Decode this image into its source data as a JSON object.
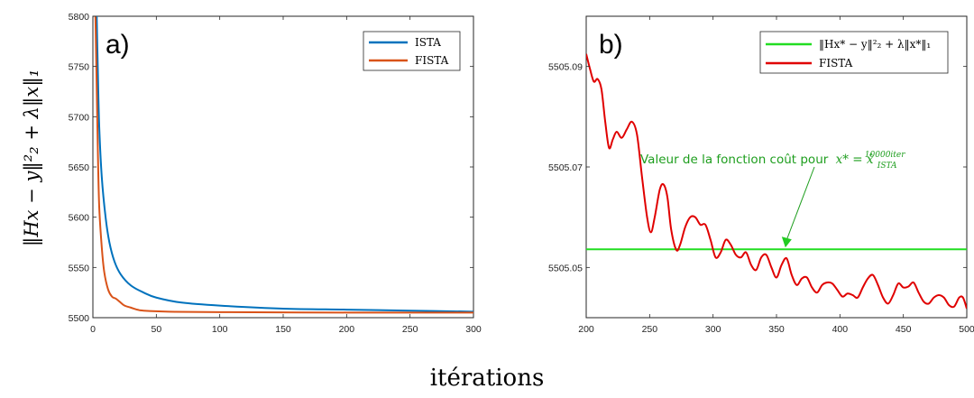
{
  "figure": {
    "xlabel": "itérations",
    "ylabel": "‖Hx − y‖²₂ + λ‖x‖₁"
  },
  "chart_data": [
    {
      "type": "line",
      "panel_label": "a)",
      "xlim": [
        0,
        300
      ],
      "ylim": [
        5500,
        5800
      ],
      "xticks": [
        0,
        50,
        100,
        150,
        200,
        250,
        300
      ],
      "yticks": [
        5500,
        5550,
        5600,
        5650,
        5700,
        5750,
        5800
      ],
      "legend_position": "top-right",
      "series": [
        {
          "name": "ISTA",
          "color": "#0072BD",
          "points": [
            [
              3,
              5800
            ],
            [
              4,
              5740
            ],
            [
              5,
              5690
            ],
            [
              7,
              5640
            ],
            [
              10,
              5600
            ],
            [
              13,
              5575
            ],
            [
              17,
              5556
            ],
            [
              22,
              5543
            ],
            [
              30,
              5532
            ],
            [
              40,
              5525
            ],
            [
              50,
              5520
            ],
            [
              70,
              5515
            ],
            [
              100,
              5512
            ],
            [
              150,
              5509
            ],
            [
              200,
              5508
            ],
            [
              250,
              5507
            ],
            [
              300,
              5506
            ]
          ]
        },
        {
          "name": "FISTA",
          "color": "#D95319",
          "points": [
            [
              2,
              5800
            ],
            [
              3,
              5730
            ],
            [
              4,
              5660
            ],
            [
              5,
              5610
            ],
            [
              7,
              5570
            ],
            [
              9,
              5545
            ],
            [
              12,
              5528
            ],
            [
              15,
              5521
            ],
            [
              18,
              5519
            ],
            [
              21,
              5516
            ],
            [
              25,
              5512
            ],
            [
              30,
              5510
            ],
            [
              35,
              5508
            ],
            [
              40,
              5507
            ],
            [
              60,
              5506
            ],
            [
              100,
              5505.5
            ],
            [
              200,
              5505.1
            ],
            [
              300,
              5505
            ]
          ]
        }
      ]
    },
    {
      "type": "line",
      "panel_label": "b)",
      "xlim": [
        200,
        500
      ],
      "ylim": [
        5505.04,
        5505.1
      ],
      "xticks": [
        200,
        250,
        300,
        350,
        400,
        450,
        500
      ],
      "yticks": [
        5505.05,
        5505.07,
        5505.09
      ],
      "ytick_labels": [
        "5505.05",
        "5505.07",
        "5505.09"
      ],
      "legend_position": "top-right",
      "series": [
        {
          "name": "‖Hx* − y‖²₂ + λ‖x*‖₁",
          "color": "#22DD22",
          "points": [
            [
              200,
              5505.0536
            ],
            [
              500,
              5505.0536
            ]
          ]
        },
        {
          "name": "FISTA",
          "color": "#E00000",
          "points": [
            [
              200,
              5505.0925
            ],
            [
              203,
              5505.0895
            ],
            [
              206,
              5505.087
            ],
            [
              209,
              5505.0875
            ],
            [
              212,
              5505.0855
            ],
            [
              215,
              5505.079
            ],
            [
              218,
              5505.0738
            ],
            [
              221,
              5505.0755
            ],
            [
              224,
              5505.077
            ],
            [
              228,
              5505.0758
            ],
            [
              232,
              5505.0775
            ],
            [
              236,
              5505.079
            ],
            [
              240,
              5505.0765
            ],
            [
              244,
              5505.068
            ],
            [
              248,
              5505.06
            ],
            [
              251,
              5505.057
            ],
            [
              254,
              5505.06
            ],
            [
              258,
              5505.0655
            ],
            [
              261,
              5505.0665
            ],
            [
              264,
              5505.064
            ],
            [
              267,
              5505.0575
            ],
            [
              271,
              5505.0535
            ],
            [
              274,
              5505.0545
            ],
            [
              278,
              5505.058
            ],
            [
              282,
              5505.06
            ],
            [
              286,
              5505.06
            ],
            [
              290,
              5505.0585
            ],
            [
              294,
              5505.0585
            ],
            [
              298,
              5505.0555
            ],
            [
              302,
              5505.052
            ],
            [
              306,
              5505.053
            ],
            [
              310,
              5505.0555
            ],
            [
              314,
              5505.0545
            ],
            [
              318,
              5505.0525
            ],
            [
              322,
              5505.052
            ],
            [
              326,
              5505.053
            ],
            [
              330,
              5505.0505
            ],
            [
              334,
              5505.0495
            ],
            [
              338,
              5505.052
            ],
            [
              342,
              5505.0525
            ],
            [
              346,
              5505.05
            ],
            [
              350,
              5505.048
            ],
            [
              354,
              5505.0505
            ],
            [
              358,
              5505.0518
            ],
            [
              362,
              5505.0485
            ],
            [
              366,
              5505.0465
            ],
            [
              370,
              5505.0478
            ],
            [
              374,
              5505.048
            ],
            [
              378,
              5505.046
            ],
            [
              382,
              5505.045
            ],
            [
              386,
              5505.0465
            ],
            [
              390,
              5505.047
            ],
            [
              394,
              5505.0468
            ],
            [
              398,
              5505.0455
            ],
            [
              402,
              5505.0442
            ],
            [
              406,
              5505.0448
            ],
            [
              410,
              5505.0445
            ],
            [
              414,
              5505.044
            ],
            [
              418,
              5505.046
            ],
            [
              422,
              5505.0478
            ],
            [
              426,
              5505.0485
            ],
            [
              430,
              5505.0465
            ],
            [
              434,
              5505.044
            ],
            [
              438,
              5505.0428
            ],
            [
              442,
              5505.0445
            ],
            [
              446,
              5505.0468
            ],
            [
              450,
              5505.046
            ],
            [
              454,
              5505.0462
            ],
            [
              458,
              5505.047
            ],
            [
              462,
              5505.045
            ],
            [
              466,
              5505.0432
            ],
            [
              470,
              5505.0428
            ],
            [
              474,
              5505.044
            ],
            [
              478,
              5505.0445
            ],
            [
              482,
              5505.044
            ],
            [
              486,
              5505.0425
            ],
            [
              490,
              5505.0422
            ],
            [
              494,
              5505.044
            ],
            [
              497,
              5505.044
            ],
            [
              500,
              5505.0418
            ]
          ]
        }
      ],
      "annotation": {
        "text": "Valeur de la fonction coût pour",
        "math": "x* = x̂",
        "sub": "ISTA",
        "sup": "10000iter",
        "color": "#1E9E1E",
        "arrow_to": [
          357,
          5505.0536
        ]
      }
    }
  ]
}
